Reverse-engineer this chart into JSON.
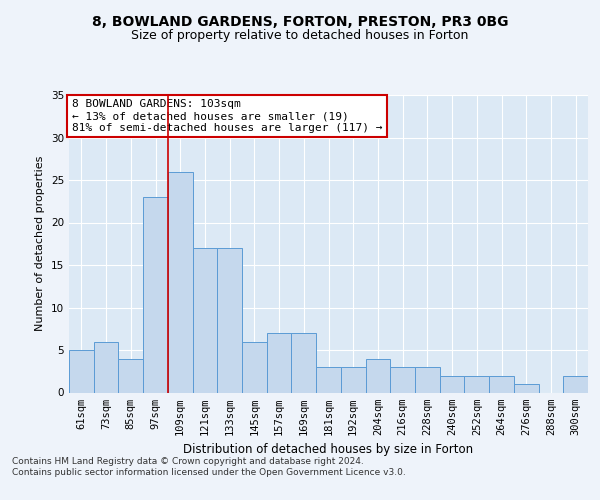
{
  "title1": "8, BOWLAND GARDENS, FORTON, PRESTON, PR3 0BG",
  "title2": "Size of property relative to detached houses in Forton",
  "xlabel": "Distribution of detached houses by size in Forton",
  "ylabel": "Number of detached properties",
  "categories": [
    "61sqm",
    "73sqm",
    "85sqm",
    "97sqm",
    "109sqm",
    "121sqm",
    "133sqm",
    "145sqm",
    "157sqm",
    "169sqm",
    "181sqm",
    "192sqm",
    "204sqm",
    "216sqm",
    "228sqm",
    "240sqm",
    "252sqm",
    "264sqm",
    "276sqm",
    "288sqm",
    "300sqm"
  ],
  "values": [
    5,
    6,
    4,
    23,
    26,
    17,
    17,
    6,
    7,
    7,
    3,
    3,
    4,
    3,
    3,
    2,
    2,
    2,
    1,
    0,
    2
  ],
  "bar_color": "#c5d8ed",
  "bar_edge_color": "#5b9bd5",
  "vline_color": "#cc0000",
  "vline_x_index": 4,
  "annotation_box_text": "8 BOWLAND GARDENS: 103sqm\n← 13% of detached houses are smaller (19)\n81% of semi-detached houses are larger (117) →",
  "annotation_box_color": "#ffffff",
  "annotation_box_edge_color": "#cc0000",
  "footer": "Contains HM Land Registry data © Crown copyright and database right 2024.\nContains public sector information licensed under the Open Government Licence v3.0.",
  "bg_color": "#eef3fa",
  "plot_bg_color": "#dce9f5",
  "ylim": [
    0,
    35
  ],
  "yticks": [
    0,
    5,
    10,
    15,
    20,
    25,
    30,
    35
  ],
  "title1_fontsize": 10,
  "title2_fontsize": 9,
  "xlabel_fontsize": 8.5,
  "ylabel_fontsize": 8,
  "tick_fontsize": 7.5,
  "annotation_fontsize": 8,
  "footer_fontsize": 6.5
}
